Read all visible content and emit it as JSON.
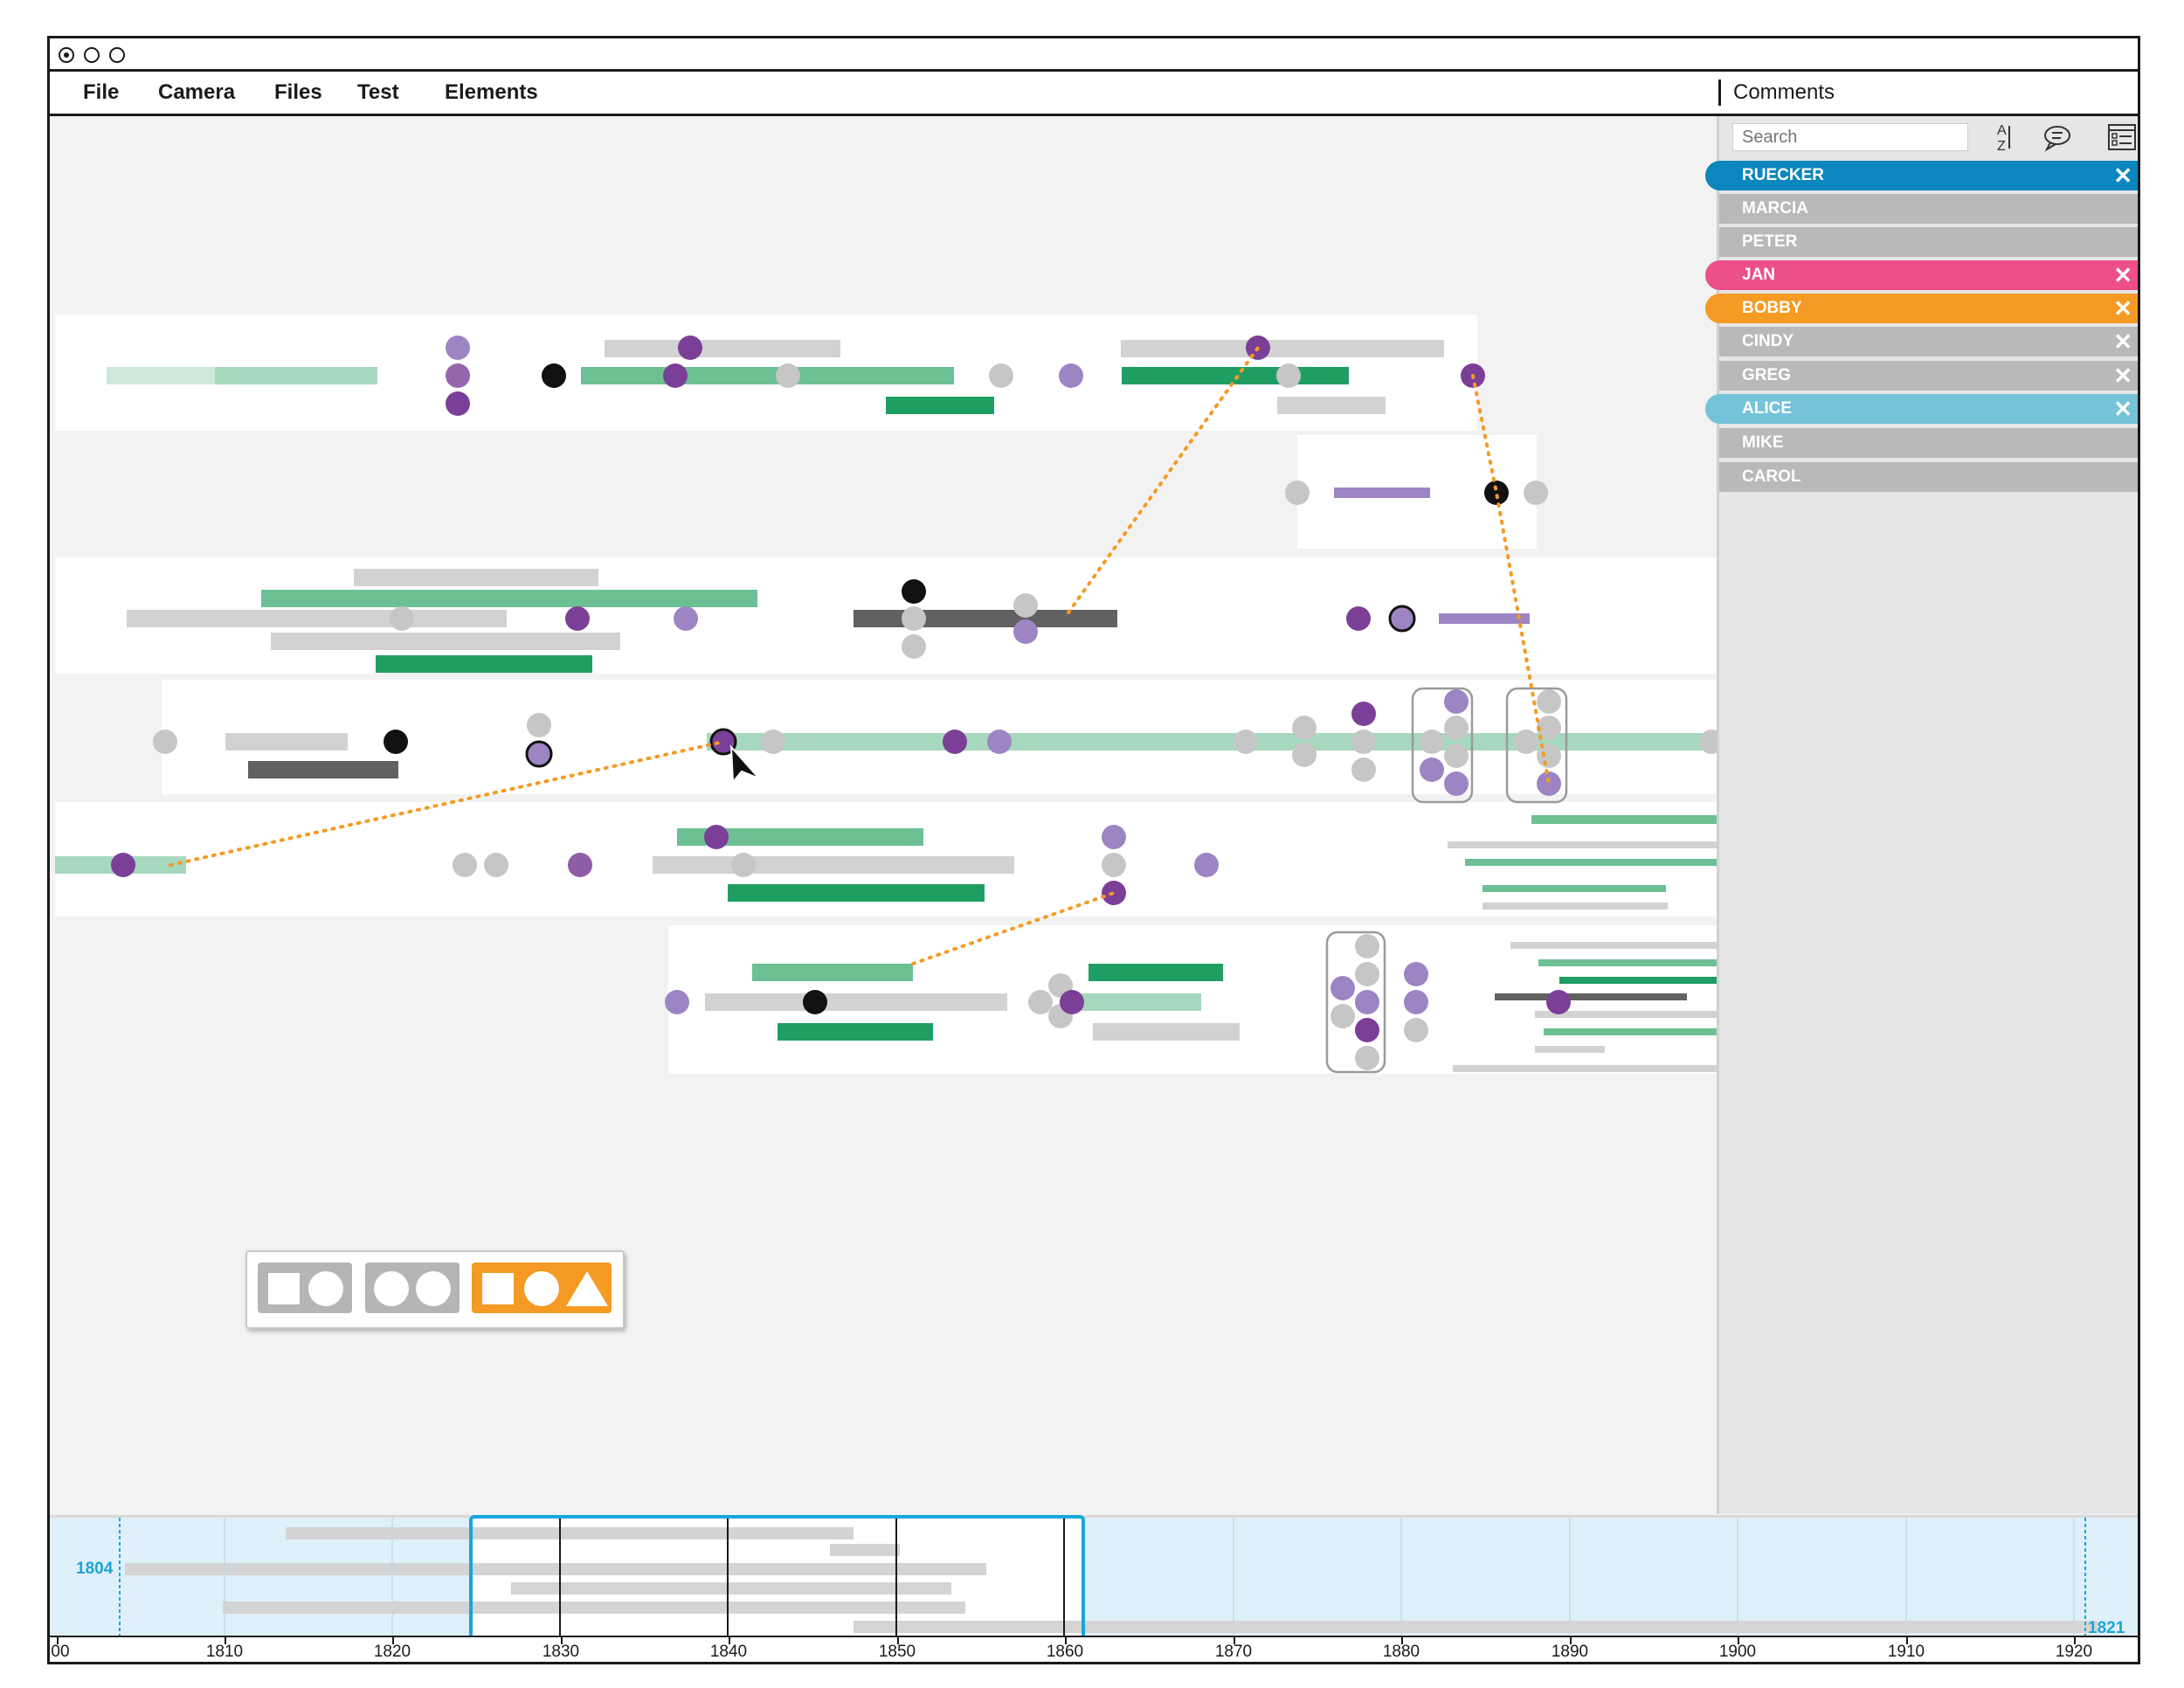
{
  "menu": {
    "items": [
      {
        "label": "File"
      },
      {
        "label": "Camera"
      },
      {
        "label": "Files"
      },
      {
        "label": "Test"
      },
      {
        "label": "Elements"
      }
    ]
  },
  "comments": {
    "title": "Comments",
    "search_placeholder": "Search",
    "icons": [
      "sort-az-icon",
      "comment-bubble-icon",
      "list-view-icon"
    ]
  },
  "filters": [
    {
      "label": "RUECKER",
      "active": true,
      "color": "#0b86be",
      "closable": true
    },
    {
      "label": "MARCIA",
      "active": false,
      "color": "#b9b9b9",
      "closable": false
    },
    {
      "label": "PETER",
      "active": false,
      "color": "#b9b9b9",
      "closable": false
    },
    {
      "label": "JAN",
      "active": true,
      "color": "#ec4f89",
      "closable": true
    },
    {
      "label": "BOBBY",
      "active": true,
      "color": "#f59a23",
      "closable": true
    },
    {
      "label": "CINDY",
      "active": false,
      "color": "#b9b9b9",
      "closable": true
    },
    {
      "label": "GREG",
      "active": false,
      "color": "#b9b9b9",
      "closable": true
    },
    {
      "label": "ALICE",
      "active": true,
      "color": "#74c3d8",
      "closable": true
    },
    {
      "label": "MIKE",
      "active": false,
      "color": "#b9b9b9",
      "closable": false
    },
    {
      "label": "CAROL",
      "active": false,
      "color": "#b9b9b9",
      "closable": false
    }
  ],
  "timeline": {
    "range_start_label": "1804",
    "range_end_label": "1821",
    "axis_labels": [
      "00",
      "1810",
      "1820",
      "1830",
      "1840",
      "1850",
      "1860",
      "1870",
      "1880",
      "1890",
      "1900",
      "1910",
      "1920"
    ]
  },
  "colors": {
    "accent_blue": "#19a5d8",
    "purple": "#7b3f98",
    "light_purple": "#9d85c4",
    "green": "#1f9e63",
    "light_green": "#a6d8bd",
    "gray": "#c6c6c6",
    "dark_gray": "#616161",
    "orange": "#f59a23"
  },
  "shape_buttons": [
    {
      "name": "square-circle",
      "active": false
    },
    {
      "name": "circle-circle",
      "active": false
    },
    {
      "name": "square-circle-triangle",
      "active": true
    }
  ]
}
